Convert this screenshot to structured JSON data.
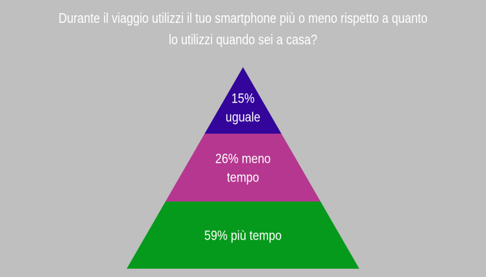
{
  "chart_data": {
    "type": "pyramid",
    "title": [
      "Durante il viaggio utilizzi il tuo smartphone più o meno rispetto a quanto",
      "lo utilizzi quando sei a casa?"
    ],
    "layers": [
      {
        "value": 15,
        "label": [
          "15%",
          "uguale"
        ],
        "color": "#33059a"
      },
      {
        "value": 26,
        "label": [
          "26% meno",
          "tempo"
        ],
        "color": "#b5378f"
      },
      {
        "value": 59,
        "label": [
          "59% più tempo"
        ],
        "color": "#069a1c"
      }
    ],
    "background": "#bfbfbf",
    "text_color": "#ffffff"
  }
}
